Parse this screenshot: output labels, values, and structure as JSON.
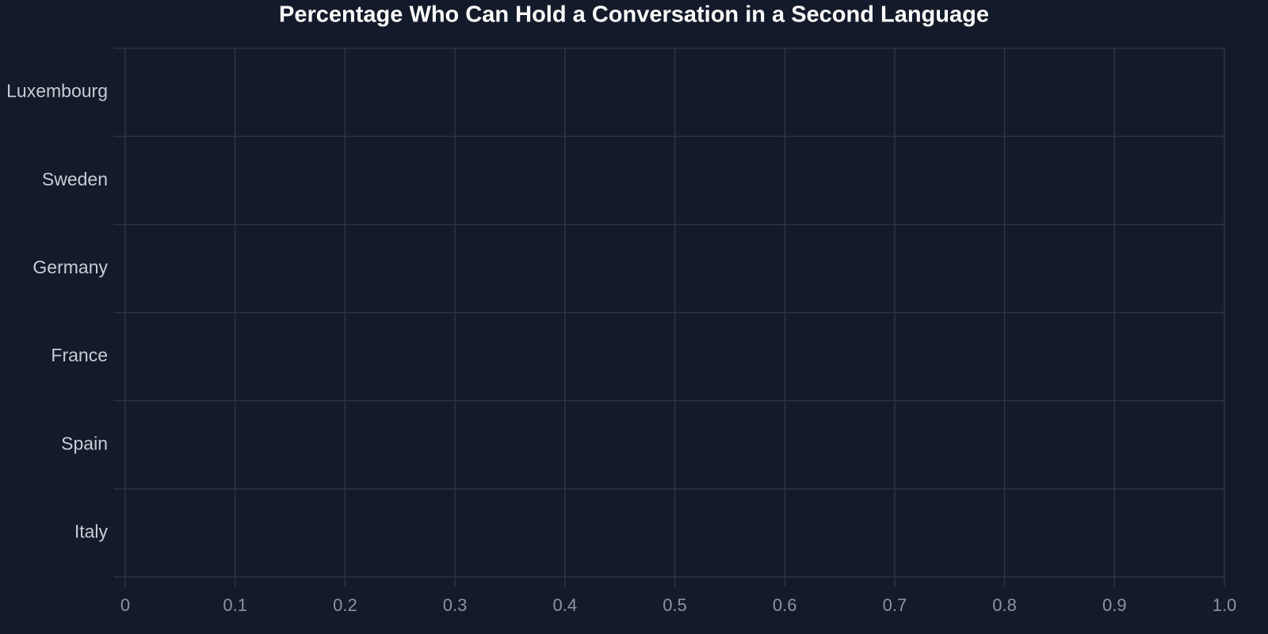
{
  "chart_data": {
    "type": "bar",
    "orientation": "horizontal",
    "title": "Percentage Who Can Hold a Conversation in a Second Language",
    "categories": [
      "Luxembourg",
      "Sweden",
      "Germany",
      "France",
      "Spain",
      "Italy"
    ],
    "xlim": [
      0,
      1
    ],
    "xticks": [
      0,
      0.1,
      0.2,
      0.3,
      0.4,
      0.5,
      0.6,
      0.7,
      0.8,
      0.9,
      {
        "value": 1,
        "label": "1.0"
      }
    ],
    "grid": true
  }
}
